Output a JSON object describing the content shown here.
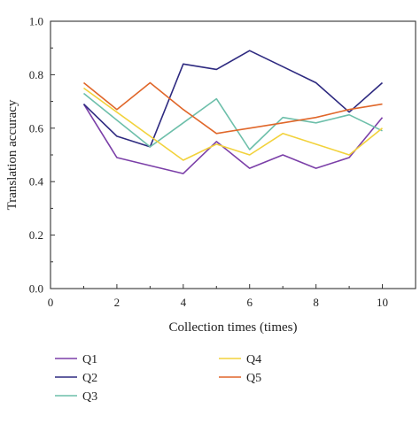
{
  "chart_data": {
    "type": "line",
    "title": "",
    "xlabel": "Collection times (times)",
    "ylabel": "Translation accuracy",
    "xlim": [
      0,
      11
    ],
    "ylim": [
      0.0,
      1.0
    ],
    "xticks": [
      0,
      2,
      4,
      6,
      8,
      10
    ],
    "yticks": [
      0.0,
      0.2,
      0.4,
      0.6,
      0.8,
      1.0
    ],
    "x": [
      1,
      2,
      3,
      4,
      5,
      6,
      7,
      8,
      9,
      10
    ],
    "grid": false,
    "legend_position": "bottom",
    "series": [
      {
        "name": "Q1",
        "color": "#7b3fa8",
        "values": [
          0.69,
          0.49,
          0.46,
          0.43,
          0.55,
          0.45,
          0.5,
          0.45,
          0.49,
          0.64
        ]
      },
      {
        "name": "Q2",
        "color": "#2e2a80",
        "values": [
          0.69,
          0.57,
          0.53,
          0.84,
          0.82,
          0.89,
          0.83,
          0.77,
          0.66,
          0.77
        ]
      },
      {
        "name": "Q3",
        "color": "#6dbfaa",
        "values": [
          0.73,
          0.63,
          0.53,
          0.62,
          0.71,
          0.52,
          0.64,
          0.62,
          0.65,
          0.59
        ]
      },
      {
        "name": "Q4",
        "color": "#f2d23c",
        "values": [
          0.75,
          0.66,
          0.57,
          0.48,
          0.54,
          0.5,
          0.58,
          0.54,
          0.5,
          0.6
        ]
      },
      {
        "name": "Q5",
        "color": "#e0672a",
        "values": [
          0.77,
          0.67,
          0.77,
          0.67,
          0.58,
          0.6,
          0.62,
          0.64,
          0.67,
          0.69
        ]
      }
    ]
  }
}
